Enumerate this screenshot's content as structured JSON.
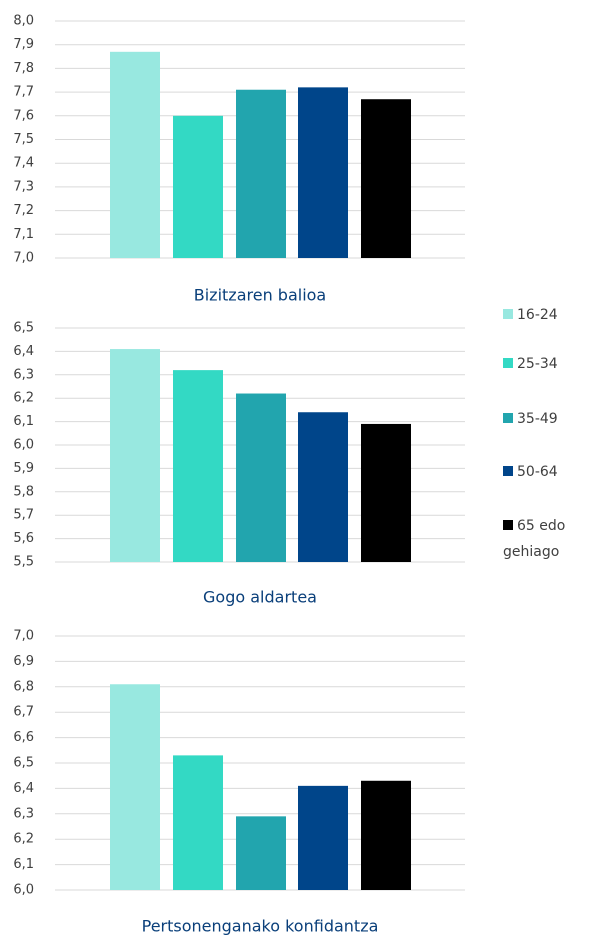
{
  "legend": [
    {
      "name": "16-24",
      "color": "#98e8e0"
    },
    {
      "name": "25-34",
      "color": "#33d9c4"
    },
    {
      "name": "35-49",
      "color": "#22a5ae"
    },
    {
      "name": "50-64",
      "color": "#00458a"
    },
    {
      "name": "65 edo gehiago",
      "color": "#000000"
    }
  ],
  "chart_data": [
    {
      "type": "bar",
      "title": "Bizitzaren balioa",
      "values": [
        7.87,
        7.6,
        7.71,
        7.72,
        7.67
      ],
      "ylim": [
        7.0,
        8.0
      ],
      "grid": true,
      "yticks": [
        {
          "value": 7.0,
          "label": "7,0"
        },
        {
          "value": 7.1,
          "label": "7,1"
        },
        {
          "value": 7.2,
          "label": "7,2"
        },
        {
          "value": 7.3,
          "label": "7,3"
        },
        {
          "value": 7.4,
          "label": "7,4"
        },
        {
          "value": 7.5,
          "label": "7,5"
        },
        {
          "value": 7.6,
          "label": "7,6"
        },
        {
          "value": 7.7,
          "label": "7,7"
        },
        {
          "value": 7.8,
          "label": "7,8"
        },
        {
          "value": 7.9,
          "label": "7,9"
        },
        {
          "value": 8.0,
          "label": "8,0"
        }
      ]
    },
    {
      "type": "bar",
      "title": "Gogo aldartea",
      "values": [
        6.41,
        6.32,
        6.22,
        6.14,
        6.09
      ],
      "ylim": [
        5.5,
        6.5
      ],
      "grid": true,
      "yticks": [
        {
          "value": 5.5,
          "label": "5,5"
        },
        {
          "value": 5.6,
          "label": "5,6"
        },
        {
          "value": 5.7,
          "label": "5,7"
        },
        {
          "value": 5.8,
          "label": "5,8"
        },
        {
          "value": 5.9,
          "label": "5,9"
        },
        {
          "value": 6.0,
          "label": "6,0"
        },
        {
          "value": 6.1,
          "label": "6,1"
        },
        {
          "value": 6.2,
          "label": "6,2"
        },
        {
          "value": 6.3,
          "label": "6,3"
        },
        {
          "value": 6.4,
          "label": "6,4"
        },
        {
          "value": 6.5,
          "label": "6,5"
        }
      ]
    },
    {
      "type": "bar",
      "title": "Pertsonenganako konfidantza",
      "values": [
        6.81,
        6.53,
        6.29,
        6.41,
        6.43
      ],
      "ylim": [
        6.0,
        7.0
      ],
      "grid": true,
      "yticks": [
        {
          "value": 6.0,
          "label": "6,0"
        },
        {
          "value": 6.1,
          "label": "6,1"
        },
        {
          "value": 6.2,
          "label": "6,2"
        },
        {
          "value": 6.3,
          "label": "6,3"
        },
        {
          "value": 6.4,
          "label": "6,4"
        },
        {
          "value": 6.5,
          "label": "6,5"
        },
        {
          "value": 6.6,
          "label": "6,6"
        },
        {
          "value": 6.7,
          "label": "6,7"
        },
        {
          "value": 6.8,
          "label": "6,8"
        },
        {
          "value": 6.9,
          "label": "6,9"
        },
        {
          "value": 7.0,
          "label": "7,0"
        }
      ]
    }
  ]
}
